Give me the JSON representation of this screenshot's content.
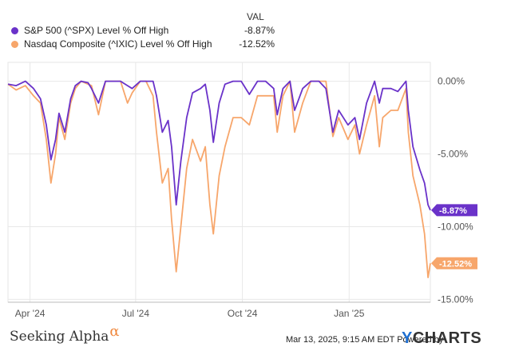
{
  "legend": {
    "value_header": "VAL",
    "items": [
      {
        "name": "S&P 500 (^SPX) Level % Off High",
        "value": "-8.87%",
        "color": "#6a32c9"
      },
      {
        "name": "Nasdaq Composite (^IXIC) Level % Off High",
        "value": "-12.52%",
        "color": "#f7a66b"
      }
    ]
  },
  "footer": {
    "brand": "Seeking Alpha",
    "brand_symbol": "α",
    "timestamp": "Mar 13, 2025, 9:15 AM EDT Powered by",
    "logo_y": "Y",
    "logo_rest": "CHARTS"
  },
  "chart_data": {
    "type": "line",
    "xlabel": "",
    "ylabel": "",
    "x_ticks": [
      "Apr '24",
      "Jul '24",
      "Oct '24",
      "Jan '25"
    ],
    "y_ticks": [
      "0.00%",
      "-5.00%",
      "-10.00%",
      "-15.00%"
    ],
    "ylim": [
      -15.2,
      1.3
    ],
    "grid": true,
    "legend_position": "top-left",
    "end_labels": [
      "-8.87%",
      "-12.52%"
    ],
    "series": [
      {
        "name": "S&P 500 (^SPX) Level % Off High",
        "color": "#6a32c9",
        "points": [
          [
            "2024-03-13",
            -0.2
          ],
          [
            "2024-03-20",
            -0.3
          ],
          [
            "2024-03-28",
            0.0
          ],
          [
            "2024-04-04",
            -0.5
          ],
          [
            "2024-04-10",
            -1.2
          ],
          [
            "2024-04-15",
            -3.0
          ],
          [
            "2024-04-19",
            -5.4
          ],
          [
            "2024-04-23",
            -4.0
          ],
          [
            "2024-04-26",
            -2.2
          ],
          [
            "2024-05-01",
            -3.5
          ],
          [
            "2024-05-06",
            -1.2
          ],
          [
            "2024-05-10",
            -0.3
          ],
          [
            "2024-05-15",
            0.0
          ],
          [
            "2024-05-21",
            -0.1
          ],
          [
            "2024-05-24",
            -0.5
          ],
          [
            "2024-05-30",
            -1.5
          ],
          [
            "2024-06-05",
            0.0
          ],
          [
            "2024-06-12",
            0.0
          ],
          [
            "2024-06-18",
            0.0
          ],
          [
            "2024-06-24",
            -0.3
          ],
          [
            "2024-06-28",
            -0.5
          ],
          [
            "2024-07-05",
            0.0
          ],
          [
            "2024-07-12",
            0.0
          ],
          [
            "2024-07-16",
            0.0
          ],
          [
            "2024-07-19",
            -1.0
          ],
          [
            "2024-07-24",
            -3.5
          ],
          [
            "2024-07-29",
            -2.7
          ],
          [
            "2024-08-01",
            -4.5
          ],
          [
            "2024-08-05",
            -8.5
          ],
          [
            "2024-08-09",
            -5.5
          ],
          [
            "2024-08-14",
            -2.5
          ],
          [
            "2024-08-19",
            -0.8
          ],
          [
            "2024-08-26",
            -0.5
          ],
          [
            "2024-08-30",
            -0.2
          ],
          [
            "2024-09-03",
            -2.0
          ],
          [
            "2024-09-06",
            -4.2
          ],
          [
            "2024-09-11",
            -1.5
          ],
          [
            "2024-09-16",
            -0.2
          ],
          [
            "2024-09-23",
            0.0
          ],
          [
            "2024-09-30",
            0.0
          ],
          [
            "2024-10-07",
            -0.9
          ],
          [
            "2024-10-14",
            0.0
          ],
          [
            "2024-10-21",
            0.0
          ],
          [
            "2024-10-28",
            -0.5
          ],
          [
            "2024-10-31",
            -2.3
          ],
          [
            "2024-11-05",
            -0.5
          ],
          [
            "2024-11-11",
            0.0
          ],
          [
            "2024-11-15",
            -2.0
          ],
          [
            "2024-11-22",
            -0.5
          ],
          [
            "2024-11-29",
            0.0
          ],
          [
            "2024-12-06",
            0.0
          ],
          [
            "2024-12-12",
            -0.5
          ],
          [
            "2024-12-18",
            -3.5
          ],
          [
            "2024-12-23",
            -2.0
          ],
          [
            "2024-12-31",
            -3.0
          ],
          [
            "2025-01-06",
            -2.5
          ],
          [
            "2025-01-10",
            -4.0
          ],
          [
            "2025-01-16",
            -1.5
          ],
          [
            "2025-01-23",
            0.0
          ],
          [
            "2025-01-27",
            -1.5
          ],
          [
            "2025-01-30",
            -0.5
          ],
          [
            "2025-02-06",
            -0.5
          ],
          [
            "2025-02-12",
            -0.7
          ],
          [
            "2025-02-19",
            0.0
          ],
          [
            "2025-02-21",
            -2.0
          ],
          [
            "2025-02-25",
            -4.5
          ],
          [
            "2025-03-03",
            -6.1
          ],
          [
            "2025-03-07",
            -7.0
          ],
          [
            "2025-03-10",
            -8.5
          ],
          [
            "2025-03-12",
            -8.87
          ]
        ]
      },
      {
        "name": "Nasdaq Composite (^IXIC) Level % Off High",
        "color": "#f7a66b",
        "points": [
          [
            "2024-03-13",
            -0.2
          ],
          [
            "2024-03-20",
            -0.6
          ],
          [
            "2024-03-28",
            -0.3
          ],
          [
            "2024-04-04",
            -1.0
          ],
          [
            "2024-04-10",
            -1.5
          ],
          [
            "2024-04-15",
            -4.0
          ],
          [
            "2024-04-19",
            -7.0
          ],
          [
            "2024-04-23",
            -5.0
          ],
          [
            "2024-04-26",
            -2.5
          ],
          [
            "2024-05-01",
            -4.0
          ],
          [
            "2024-05-06",
            -1.5
          ],
          [
            "2024-05-10",
            -0.5
          ],
          [
            "2024-05-15",
            0.0
          ],
          [
            "2024-05-21",
            -0.2
          ],
          [
            "2024-05-24",
            -0.3
          ],
          [
            "2024-05-30",
            -2.3
          ],
          [
            "2024-06-05",
            0.0
          ],
          [
            "2024-06-12",
            0.0
          ],
          [
            "2024-06-18",
            0.0
          ],
          [
            "2024-06-24",
            -1.5
          ],
          [
            "2024-06-28",
            -0.8
          ],
          [
            "2024-07-05",
            0.0
          ],
          [
            "2024-07-10",
            0.0
          ],
          [
            "2024-07-16",
            -1.0
          ],
          [
            "2024-07-19",
            -3.5
          ],
          [
            "2024-07-24",
            -7.0
          ],
          [
            "2024-07-29",
            -6.0
          ],
          [
            "2024-08-01",
            -9.5
          ],
          [
            "2024-08-05",
            -13.1
          ],
          [
            "2024-08-09",
            -10.0
          ],
          [
            "2024-08-14",
            -6.0
          ],
          [
            "2024-08-19",
            -4.0
          ],
          [
            "2024-08-26",
            -5.5
          ],
          [
            "2024-08-30",
            -4.5
          ],
          [
            "2024-09-03",
            -8.5
          ],
          [
            "2024-09-06",
            -10.5
          ],
          [
            "2024-09-11",
            -6.5
          ],
          [
            "2024-09-16",
            -4.5
          ],
          [
            "2024-09-23",
            -2.5
          ],
          [
            "2024-09-30",
            -2.5
          ],
          [
            "2024-10-07",
            -3.0
          ],
          [
            "2024-10-14",
            -1.0
          ],
          [
            "2024-10-21",
            -1.0
          ],
          [
            "2024-10-28",
            -1.0
          ],
          [
            "2024-10-31",
            -3.5
          ],
          [
            "2024-11-05",
            -1.0
          ],
          [
            "2024-11-11",
            0.0
          ],
          [
            "2024-11-15",
            -3.5
          ],
          [
            "2024-11-22",
            -1.5
          ],
          [
            "2024-11-29",
            0.0
          ],
          [
            "2024-12-06",
            0.0
          ],
          [
            "2024-12-12",
            0.0
          ],
          [
            "2024-12-18",
            -3.8
          ],
          [
            "2024-12-23",
            -2.5
          ],
          [
            "2024-12-31",
            -4.0
          ],
          [
            "2025-01-06",
            -3.0
          ],
          [
            "2025-01-10",
            -5.0
          ],
          [
            "2025-01-16",
            -3.0
          ],
          [
            "2025-01-23",
            -1.0
          ],
          [
            "2025-01-27",
            -4.5
          ],
          [
            "2025-01-30",
            -2.5
          ],
          [
            "2025-02-06",
            -2.0
          ],
          [
            "2025-02-12",
            -2.0
          ],
          [
            "2025-02-19",
            -0.5
          ],
          [
            "2025-02-21",
            -3.5
          ],
          [
            "2025-02-25",
            -6.5
          ],
          [
            "2025-03-03",
            -8.5
          ],
          [
            "2025-03-07",
            -10.5
          ],
          [
            "2025-03-10",
            -13.5
          ],
          [
            "2025-03-12",
            -12.52
          ]
        ]
      }
    ]
  }
}
